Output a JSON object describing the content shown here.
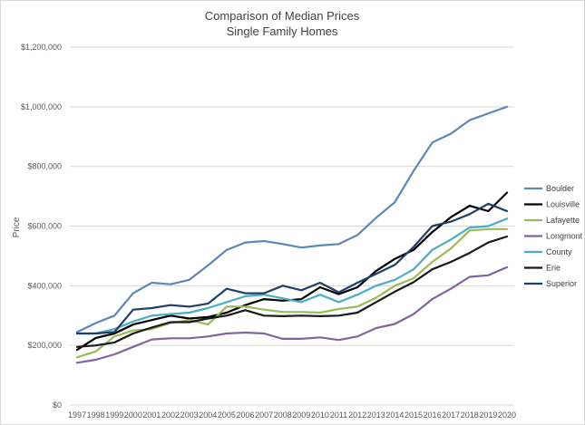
{
  "chart_data": {
    "type": "line",
    "title": "Comparison of Median Prices",
    "subtitle": "Single Family Homes",
    "xlabel": "",
    "ylabel": "Price",
    "ylim": [
      0,
      1200000
    ],
    "y_ticks": [
      0,
      200000,
      400000,
      600000,
      800000,
      1000000,
      1200000
    ],
    "y_tick_labels": [
      "$0",
      "$200,000",
      "$400,000",
      "$600,000",
      "$800,000",
      "$1,000,000",
      "$1,200,000"
    ],
    "grid": true,
    "legend_position": "right",
    "categories": [
      "1997",
      "1998",
      "1999",
      "2000",
      "2001",
      "2002",
      "2003",
      "2004",
      "2005",
      "2006",
      "2007",
      "2008",
      "2009",
      "2010",
      "2011",
      "2012",
      "2013",
      "2014",
      "2015",
      "2016",
      "2017",
      "2018",
      "2019",
      "2020"
    ],
    "series": [
      {
        "name": "Boulder",
        "color": "#5b87bd",
        "values": [
          245000,
          275000,
          300000,
          375000,
          410000,
          405000,
          420000,
          468000,
          520000,
          545000,
          550000,
          540000,
          528000,
          535000,
          540000,
          570000,
          628000,
          680000,
          785000,
          880000,
          910000,
          955000,
          978000,
          1000000
        ]
      },
      {
        "name": "Louisville",
        "color": "#000000",
        "values": [
          185000,
          225000,
          240000,
          270000,
          285000,
          300000,
          290000,
          295000,
          310000,
          335000,
          355000,
          350000,
          355000,
          395000,
          372000,
          395000,
          450000,
          490000,
          520000,
          580000,
          630000,
          668000,
          650000,
          712000
        ]
      },
      {
        "name": "Lafayette",
        "color": "#9bbb59",
        "values": [
          160000,
          180000,
          230000,
          250000,
          255000,
          275000,
          285000,
          270000,
          330000,
          330000,
          320000,
          312000,
          312000,
          310000,
          322000,
          330000,
          360000,
          400000,
          425000,
          480000,
          525000,
          585000,
          590000,
          590000
        ]
      },
      {
        "name": "Longmont",
        "color": "#8064a2",
        "values": [
          142000,
          152000,
          170000,
          195000,
          220000,
          224000,
          224000,
          230000,
          240000,
          243000,
          240000,
          222000,
          222000,
          227000,
          218000,
          230000,
          258000,
          272000,
          305000,
          355000,
          390000,
          430000,
          435000,
          462000
        ]
      },
      {
        "name": "County",
        "color": "#4bacc6",
        "values": [
          240000,
          240000,
          255000,
          280000,
          300000,
          305000,
          310000,
          325000,
          345000,
          365000,
          370000,
          358000,
          345000,
          370000,
          345000,
          370000,
          400000,
          420000,
          455000,
          520000,
          555000,
          595000,
          600000,
          625000
        ]
      },
      {
        "name": "Erie",
        "color": "#1a1a1a",
        "values": [
          195000,
          200000,
          210000,
          240000,
          260000,
          278000,
          278000,
          290000,
          300000,
          318000,
          300000,
          298000,
          300000,
          298000,
          300000,
          310000,
          345000,
          380000,
          412000,
          455000,
          480000,
          510000,
          545000,
          565000
        ]
      },
      {
        "name": "Superior",
        "color": "#1f3f6b",
        "values": [
          240000,
          240000,
          245000,
          320000,
          325000,
          335000,
          330000,
          340000,
          390000,
          375000,
          375000,
          400000,
          385000,
          410000,
          378000,
          410000,
          440000,
          470000,
          530000,
          600000,
          615000,
          640000,
          675000,
          650000
        ]
      }
    ]
  }
}
